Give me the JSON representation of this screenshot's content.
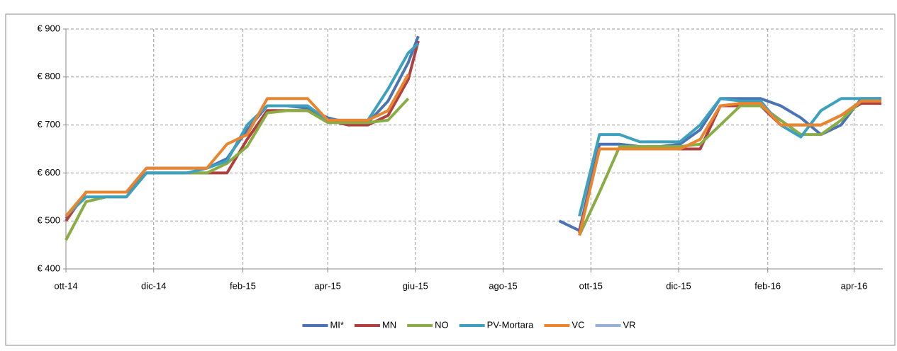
{
  "chart_data": {
    "type": "line",
    "x": [
      0,
      14,
      28,
      42,
      56,
      70,
      84,
      98,
      112,
      126,
      140,
      154,
      168,
      182,
      196,
      210,
      224,
      238,
      245,
      294,
      343,
      357,
      371,
      385,
      399,
      413,
      427,
      441,
      455,
      469,
      483,
      497,
      511,
      525,
      539,
      553,
      567
    ],
    "xlim": [
      0,
      568
    ],
    "xticks": [
      {
        "value": 0,
        "label": "ott-14"
      },
      {
        "value": 61,
        "label": "dic-14"
      },
      {
        "value": 123,
        "label": "feb-15"
      },
      {
        "value": 182,
        "label": "apr-15"
      },
      {
        "value": 243,
        "label": "giu-15"
      },
      {
        "value": 304,
        "label": "ago-15"
      },
      {
        "value": 365,
        "label": "ott-15"
      },
      {
        "value": 426,
        "label": "dic-15"
      },
      {
        "value": 488,
        "label": "feb-16"
      },
      {
        "value": 548,
        "label": "apr-16"
      }
    ],
    "ylim": [
      400,
      900
    ],
    "yticks": [
      {
        "value": 400,
        "label": "€ 400"
      },
      {
        "value": 500,
        "label": "€ 500"
      },
      {
        "value": 600,
        "label": "€ 600"
      },
      {
        "value": 700,
        "label": "€ 700"
      },
      {
        "value": 800,
        "label": "€ 800"
      },
      {
        "value": 900,
        "label": "€ 900"
      }
    ],
    "grid": true,
    "legend": "bottom",
    "series": [
      {
        "name": "MI*",
        "color": "#4a74b4",
        "values": [
          505,
          560,
          560,
          560,
          610,
          610,
          610,
          610,
          630,
          690,
          740,
          740,
          735,
          715,
          705,
          705,
          750,
          830,
          885,
          null,
          500,
          480,
          660,
          660,
          655,
          655,
          660,
          690,
          755,
          755,
          755,
          740,
          715,
          680,
          700,
          755,
          755
        ]
      },
      {
        "name": "MN",
        "color": "#b0403f",
        "values": [
          500,
          560,
          560,
          560,
          600,
          600,
          600,
          600,
          600,
          670,
          730,
          730,
          730,
          710,
          700,
          700,
          720,
          795,
          875,
          null,
          null,
          475,
          650,
          650,
          650,
          650,
          650,
          650,
          740,
          740,
          740,
          700,
          700,
          700,
          720,
          745,
          745
        ]
      },
      {
        "name": "NO",
        "color": "#8aac45",
        "values": [
          460,
          540,
          550,
          550,
          600,
          600,
          600,
          600,
          620,
          655,
          725,
          730,
          730,
          705,
          705,
          705,
          710,
          755,
          null,
          null,
          null,
          470,
          560,
          655,
          655,
          655,
          655,
          660,
          700,
          740,
          740,
          710,
          680,
          680,
          710,
          750,
          750
        ]
      },
      {
        "name": "PV-Mortara",
        "color": "#3ea0bf",
        "values": [
          510,
          550,
          550,
          550,
          600,
          600,
          600,
          610,
          625,
          700,
          740,
          740,
          740,
          710,
          710,
          710,
          775,
          850,
          870,
          null,
          null,
          510,
          680,
          680,
          665,
          665,
          665,
          700,
          755,
          750,
          750,
          700,
          675,
          730,
          755,
          755,
          755
        ]
      },
      {
        "name": "VC",
        "color": "#e8852e",
        "values": [
          510,
          560,
          560,
          560,
          610,
          610,
          610,
          610,
          660,
          680,
          755,
          755,
          755,
          710,
          710,
          710,
          730,
          805,
          null,
          null,
          null,
          470,
          650,
          650,
          650,
          650,
          650,
          670,
          740,
          745,
          745,
          700,
          700,
          700,
          720,
          750,
          750
        ]
      },
      {
        "name": "VR",
        "color": "#95b1d6",
        "values": [
          null,
          null,
          null,
          null,
          null,
          null,
          null,
          null,
          null,
          null,
          null,
          null,
          null,
          null,
          null,
          null,
          null,
          null,
          null,
          null,
          null,
          null,
          null,
          null,
          null,
          null,
          null,
          null,
          null,
          null,
          null,
          null,
          null,
          null,
          null,
          null,
          null
        ]
      }
    ]
  }
}
